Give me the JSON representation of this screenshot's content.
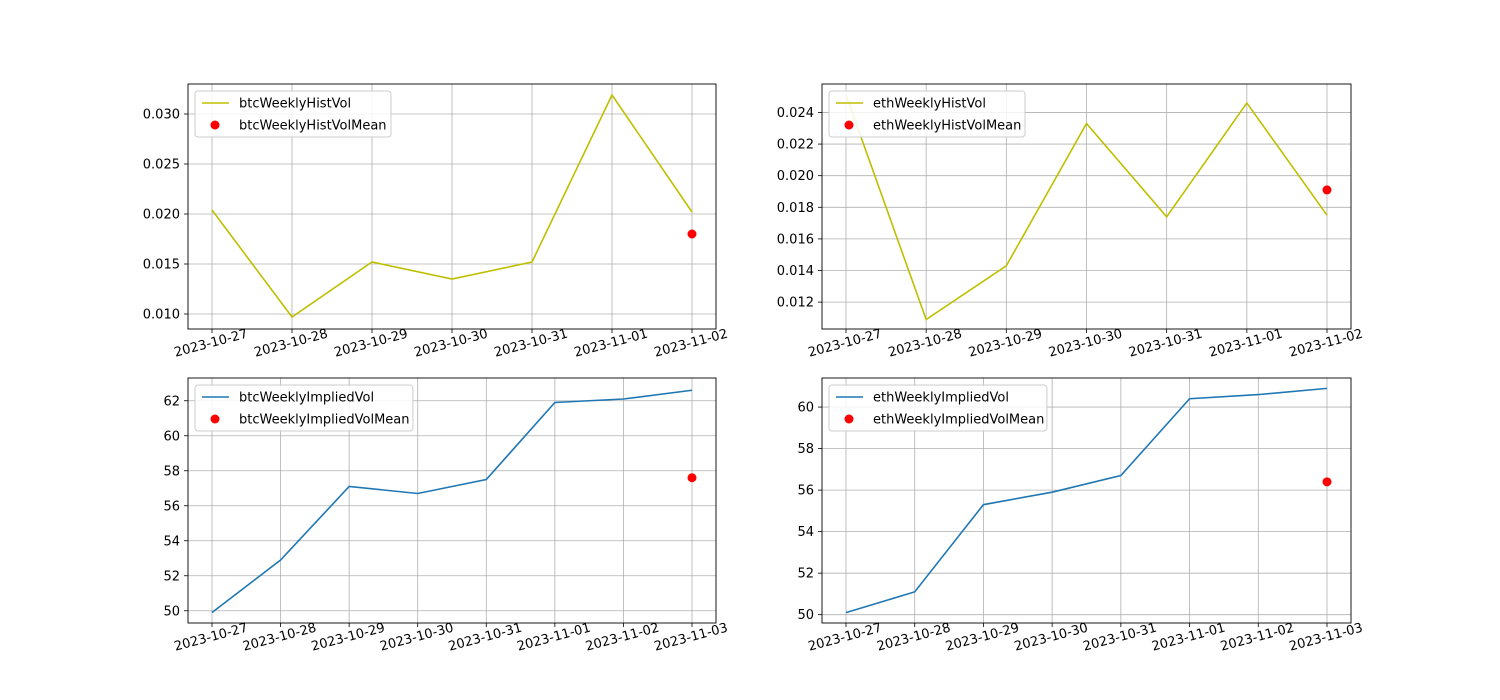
{
  "chart_data": [
    {
      "type": "line",
      "grid": true,
      "legend_position": "top-left",
      "x": [
        "2023-10-27",
        "2023-10-28",
        "2023-10-29",
        "2023-10-30",
        "2023-10-31",
        "2023-11-01",
        "2023-11-02"
      ],
      "yticks": [
        "0.010",
        "0.015",
        "0.020",
        "0.025",
        "0.030"
      ],
      "ylim": [
        0.0085,
        0.033
      ],
      "series": [
        {
          "name": "btcWeeklyHistVol",
          "kind": "line",
          "color": "#bfbf00",
          "values": [
            0.0204,
            0.0097,
            0.0152,
            0.0135,
            0.0152,
            0.0319,
            0.0202
          ]
        }
      ],
      "mean": {
        "name": "btcWeeklyHistVolMean",
        "kind": "scatter",
        "color": "#ff0000",
        "x": "2023-11-02",
        "y": 0.018
      }
    },
    {
      "type": "line",
      "grid": true,
      "legend_position": "top-left",
      "x": [
        "2023-10-27",
        "2023-10-28",
        "2023-10-29",
        "2023-10-30",
        "2023-10-31",
        "2023-11-01",
        "2023-11-02"
      ],
      "yticks": [
        "0.012",
        "0.014",
        "0.016",
        "0.018",
        "0.020",
        "0.022",
        "0.024"
      ],
      "ylim": [
        0.0103,
        0.0258
      ],
      "series": [
        {
          "name": "ethWeeklyHistVol",
          "kind": "line",
          "color": "#bfbf00",
          "values": [
            0.0251,
            0.0109,
            0.0143,
            0.0233,
            0.0174,
            0.0246,
            0.0175
          ]
        }
      ],
      "mean": {
        "name": "ethWeeklyHistVolMean",
        "kind": "scatter",
        "color": "#ff0000",
        "x": "2023-11-02",
        "y": 0.0191
      }
    },
    {
      "type": "line",
      "grid": true,
      "legend_position": "top-left",
      "x": [
        "2023-10-27",
        "2023-10-28",
        "2023-10-29",
        "2023-10-30",
        "2023-10-31",
        "2023-11-01",
        "2023-11-02",
        "2023-11-03"
      ],
      "yticks": [
        "50",
        "52",
        "54",
        "56",
        "58",
        "60",
        "62"
      ],
      "ylim": [
        49.3,
        63.3
      ],
      "series": [
        {
          "name": "btcWeeklyImpliedVol",
          "kind": "line",
          "color": "#1f77b4",
          "values": [
            49.9,
            52.9,
            57.1,
            56.7,
            57.5,
            61.9,
            62.1,
            62.6
          ]
        }
      ],
      "mean": {
        "name": "btcWeeklyImpliedVolMean",
        "kind": "scatter",
        "color": "#ff0000",
        "x": "2023-11-03",
        "y": 57.6
      }
    },
    {
      "type": "line",
      "grid": true,
      "legend_position": "top-left",
      "x": [
        "2023-10-27",
        "2023-10-28",
        "2023-10-29",
        "2023-10-30",
        "2023-10-31",
        "2023-11-01",
        "2023-11-02",
        "2023-11-03"
      ],
      "yticks": [
        "50",
        "52",
        "54",
        "56",
        "58",
        "60"
      ],
      "ylim": [
        49.6,
        61.4
      ],
      "series": [
        {
          "name": "ethWeeklyImpliedVol",
          "kind": "line",
          "color": "#1f77b4",
          "values": [
            50.1,
            51.1,
            55.3,
            55.9,
            56.7,
            60.4,
            60.6,
            60.9
          ]
        }
      ],
      "mean": {
        "name": "ethWeeklyImpliedVolMean",
        "kind": "scatter",
        "color": "#ff0000",
        "x": "2023-11-03",
        "y": 56.4
      }
    }
  ]
}
